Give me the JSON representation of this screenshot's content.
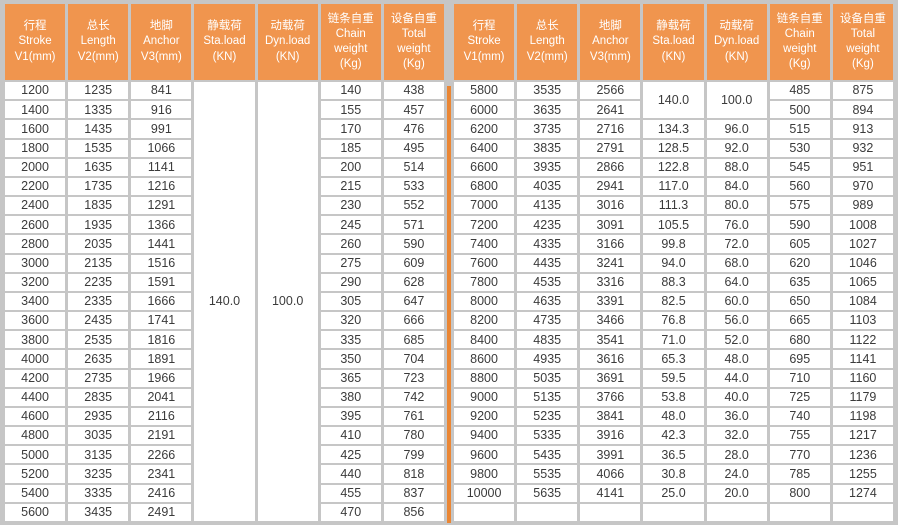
{
  "colors": {
    "header_bg": "#f0954e",
    "divider": "#ea8634",
    "grid": "#c6c6c6",
    "cell_bg": "#ffffff",
    "header_text": "#ffffff",
    "body_text": "#3b3b3b"
  },
  "table": {
    "headers": [
      {
        "lines": [
          "行程",
          "Stroke",
          "V1(mm)"
        ]
      },
      {
        "lines": [
          "总长",
          "Length",
          "V2(mm)"
        ]
      },
      {
        "lines": [
          "地脚",
          "Anchor",
          "V3(mm)"
        ]
      },
      {
        "lines": [
          "静载荷",
          "Sta.load",
          "(KN)"
        ]
      },
      {
        "lines": [
          "动载荷",
          "Dyn.load",
          "(KN)"
        ]
      },
      {
        "lines": [
          "链条自重",
          "Chain",
          "weight",
          "(Kg)"
        ]
      },
      {
        "lines": [
          "设备自重",
          "Total",
          "weight",
          "(Kg)"
        ]
      }
    ],
    "left_rows": [
      [
        "1200",
        "1235",
        "841",
        {
          "v": "140.0",
          "rs": 23
        },
        {
          "v": "100.0",
          "rs": 23
        },
        "140",
        "438"
      ],
      [
        "1400",
        "1335",
        "916",
        null,
        null,
        "155",
        "457"
      ],
      [
        "1600",
        "1435",
        "991",
        null,
        null,
        "170",
        "476"
      ],
      [
        "1800",
        "1535",
        "1066",
        null,
        null,
        "185",
        "495"
      ],
      [
        "2000",
        "1635",
        "1141",
        null,
        null,
        "200",
        "514"
      ],
      [
        "2200",
        "1735",
        "1216",
        null,
        null,
        "215",
        "533"
      ],
      [
        "2400",
        "1835",
        "1291",
        null,
        null,
        "230",
        "552"
      ],
      [
        "2600",
        "1935",
        "1366",
        null,
        null,
        "245",
        "571"
      ],
      [
        "2800",
        "2035",
        "1441",
        null,
        null,
        "260",
        "590"
      ],
      [
        "3000",
        "2135",
        "1516",
        null,
        null,
        "275",
        "609"
      ],
      [
        "3200",
        "2235",
        "1591",
        null,
        null,
        "290",
        "628"
      ],
      [
        "3400",
        "2335",
        "1666",
        null,
        null,
        "305",
        "647"
      ],
      [
        "3600",
        "2435",
        "1741",
        null,
        null,
        "320",
        "666"
      ],
      [
        "3800",
        "2535",
        "1816",
        null,
        null,
        "335",
        "685"
      ],
      [
        "4000",
        "2635",
        "1891",
        null,
        null,
        "350",
        "704"
      ],
      [
        "4200",
        "2735",
        "1966",
        null,
        null,
        "365",
        "723"
      ],
      [
        "4400",
        "2835",
        "2041",
        null,
        null,
        "380",
        "742"
      ],
      [
        "4600",
        "2935",
        "2116",
        null,
        null,
        "395",
        "761"
      ],
      [
        "4800",
        "3035",
        "2191",
        null,
        null,
        "410",
        "780"
      ],
      [
        "5000",
        "3135",
        "2266",
        null,
        null,
        "425",
        "799"
      ],
      [
        "5200",
        "3235",
        "2341",
        null,
        null,
        "440",
        "818"
      ],
      [
        "5400",
        "3335",
        "2416",
        null,
        null,
        "455",
        "837"
      ],
      [
        "5600",
        "3435",
        "2491",
        null,
        null,
        "470",
        "856"
      ]
    ],
    "right_rows": [
      [
        "5800",
        "3535",
        "2566",
        {
          "v": "140.0",
          "rs": 2
        },
        {
          "v": "100.0",
          "rs": 2
        },
        "485",
        "875"
      ],
      [
        "6000",
        "3635",
        "2641",
        null,
        null,
        "500",
        "894"
      ],
      [
        "6200",
        "3735",
        "2716",
        "134.3",
        "96.0",
        "515",
        "913"
      ],
      [
        "6400",
        "3835",
        "2791",
        "128.5",
        "92.0",
        "530",
        "932"
      ],
      [
        "6600",
        "3935",
        "2866",
        "122.8",
        "88.0",
        "545",
        "951"
      ],
      [
        "6800",
        "4035",
        "2941",
        "117.0",
        "84.0",
        "560",
        "970"
      ],
      [
        "7000",
        "4135",
        "3016",
        "111.3",
        "80.0",
        "575",
        "989"
      ],
      [
        "7200",
        "4235",
        "3091",
        "105.5",
        "76.0",
        "590",
        "1008"
      ],
      [
        "7400",
        "4335",
        "3166",
        "99.8",
        "72.0",
        "605",
        "1027"
      ],
      [
        "7600",
        "4435",
        "3241",
        "94.0",
        "68.0",
        "620",
        "1046"
      ],
      [
        "7800",
        "4535",
        "3316",
        "88.3",
        "64.0",
        "635",
        "1065"
      ],
      [
        "8000",
        "4635",
        "3391",
        "82.5",
        "60.0",
        "650",
        "1084"
      ],
      [
        "8200",
        "4735",
        "3466",
        "76.8",
        "56.0",
        "665",
        "1103"
      ],
      [
        "8400",
        "4835",
        "3541",
        "71.0",
        "52.0",
        "680",
        "1122"
      ],
      [
        "8600",
        "4935",
        "3616",
        "65.3",
        "48.0",
        "695",
        "1141"
      ],
      [
        "8800",
        "5035",
        "3691",
        "59.5",
        "44.0",
        "710",
        "1160"
      ],
      [
        "9000",
        "5135",
        "3766",
        "53.8",
        "40.0",
        "725",
        "1179"
      ],
      [
        "9200",
        "5235",
        "3841",
        "48.0",
        "36.0",
        "740",
        "1198"
      ],
      [
        "9400",
        "5335",
        "3916",
        "42.3",
        "32.0",
        "755",
        "1217"
      ],
      [
        "9600",
        "5435",
        "3991",
        "36.5",
        "28.0",
        "770",
        "1236"
      ],
      [
        "9800",
        "5535",
        "4066",
        "30.8",
        "24.0",
        "785",
        "1255"
      ],
      [
        "10000",
        "5635",
        "4141",
        "25.0",
        "20.0",
        "800",
        "1274"
      ],
      [
        "",
        "",
        "",
        "",
        "",
        "",
        ""
      ]
    ]
  }
}
